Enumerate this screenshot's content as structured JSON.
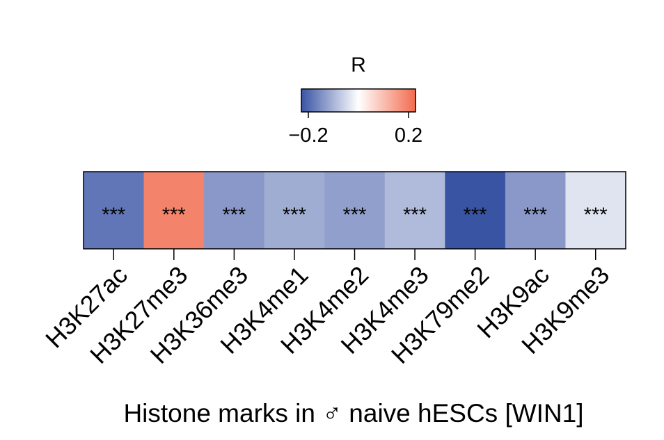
{
  "chart_data": {
    "type": "heatmap",
    "categories": [
      "H3K27ac",
      "H3K27me3",
      "H3K36me3",
      "H3K4me1",
      "H3K4me2",
      "H3K4me3",
      "H3K79me2",
      "H3K9ac",
      "H3K9me3"
    ],
    "values": [
      -0.2,
      0.21,
      -0.15,
      -0.12,
      -0.14,
      -0.1,
      -0.25,
      -0.15,
      -0.04
    ],
    "annotations": [
      "***",
      "***",
      "***",
      "***",
      "***",
      "***",
      "***",
      "***",
      "***"
    ],
    "xlabel": "Histone marks in ♂ naive hESCs [WIN1]",
    "legend": {
      "title": "R",
      "tick_labels": [
        "−0.2",
        "0.2"
      ],
      "tick_values": [
        -0.2,
        0.2
      ],
      "range": [
        -0.25,
        0.25
      ],
      "position": "top-center"
    },
    "colors": {
      "low": "#3a54a4",
      "mid": "#ffffff",
      "high": "#f26b4f"
    }
  }
}
